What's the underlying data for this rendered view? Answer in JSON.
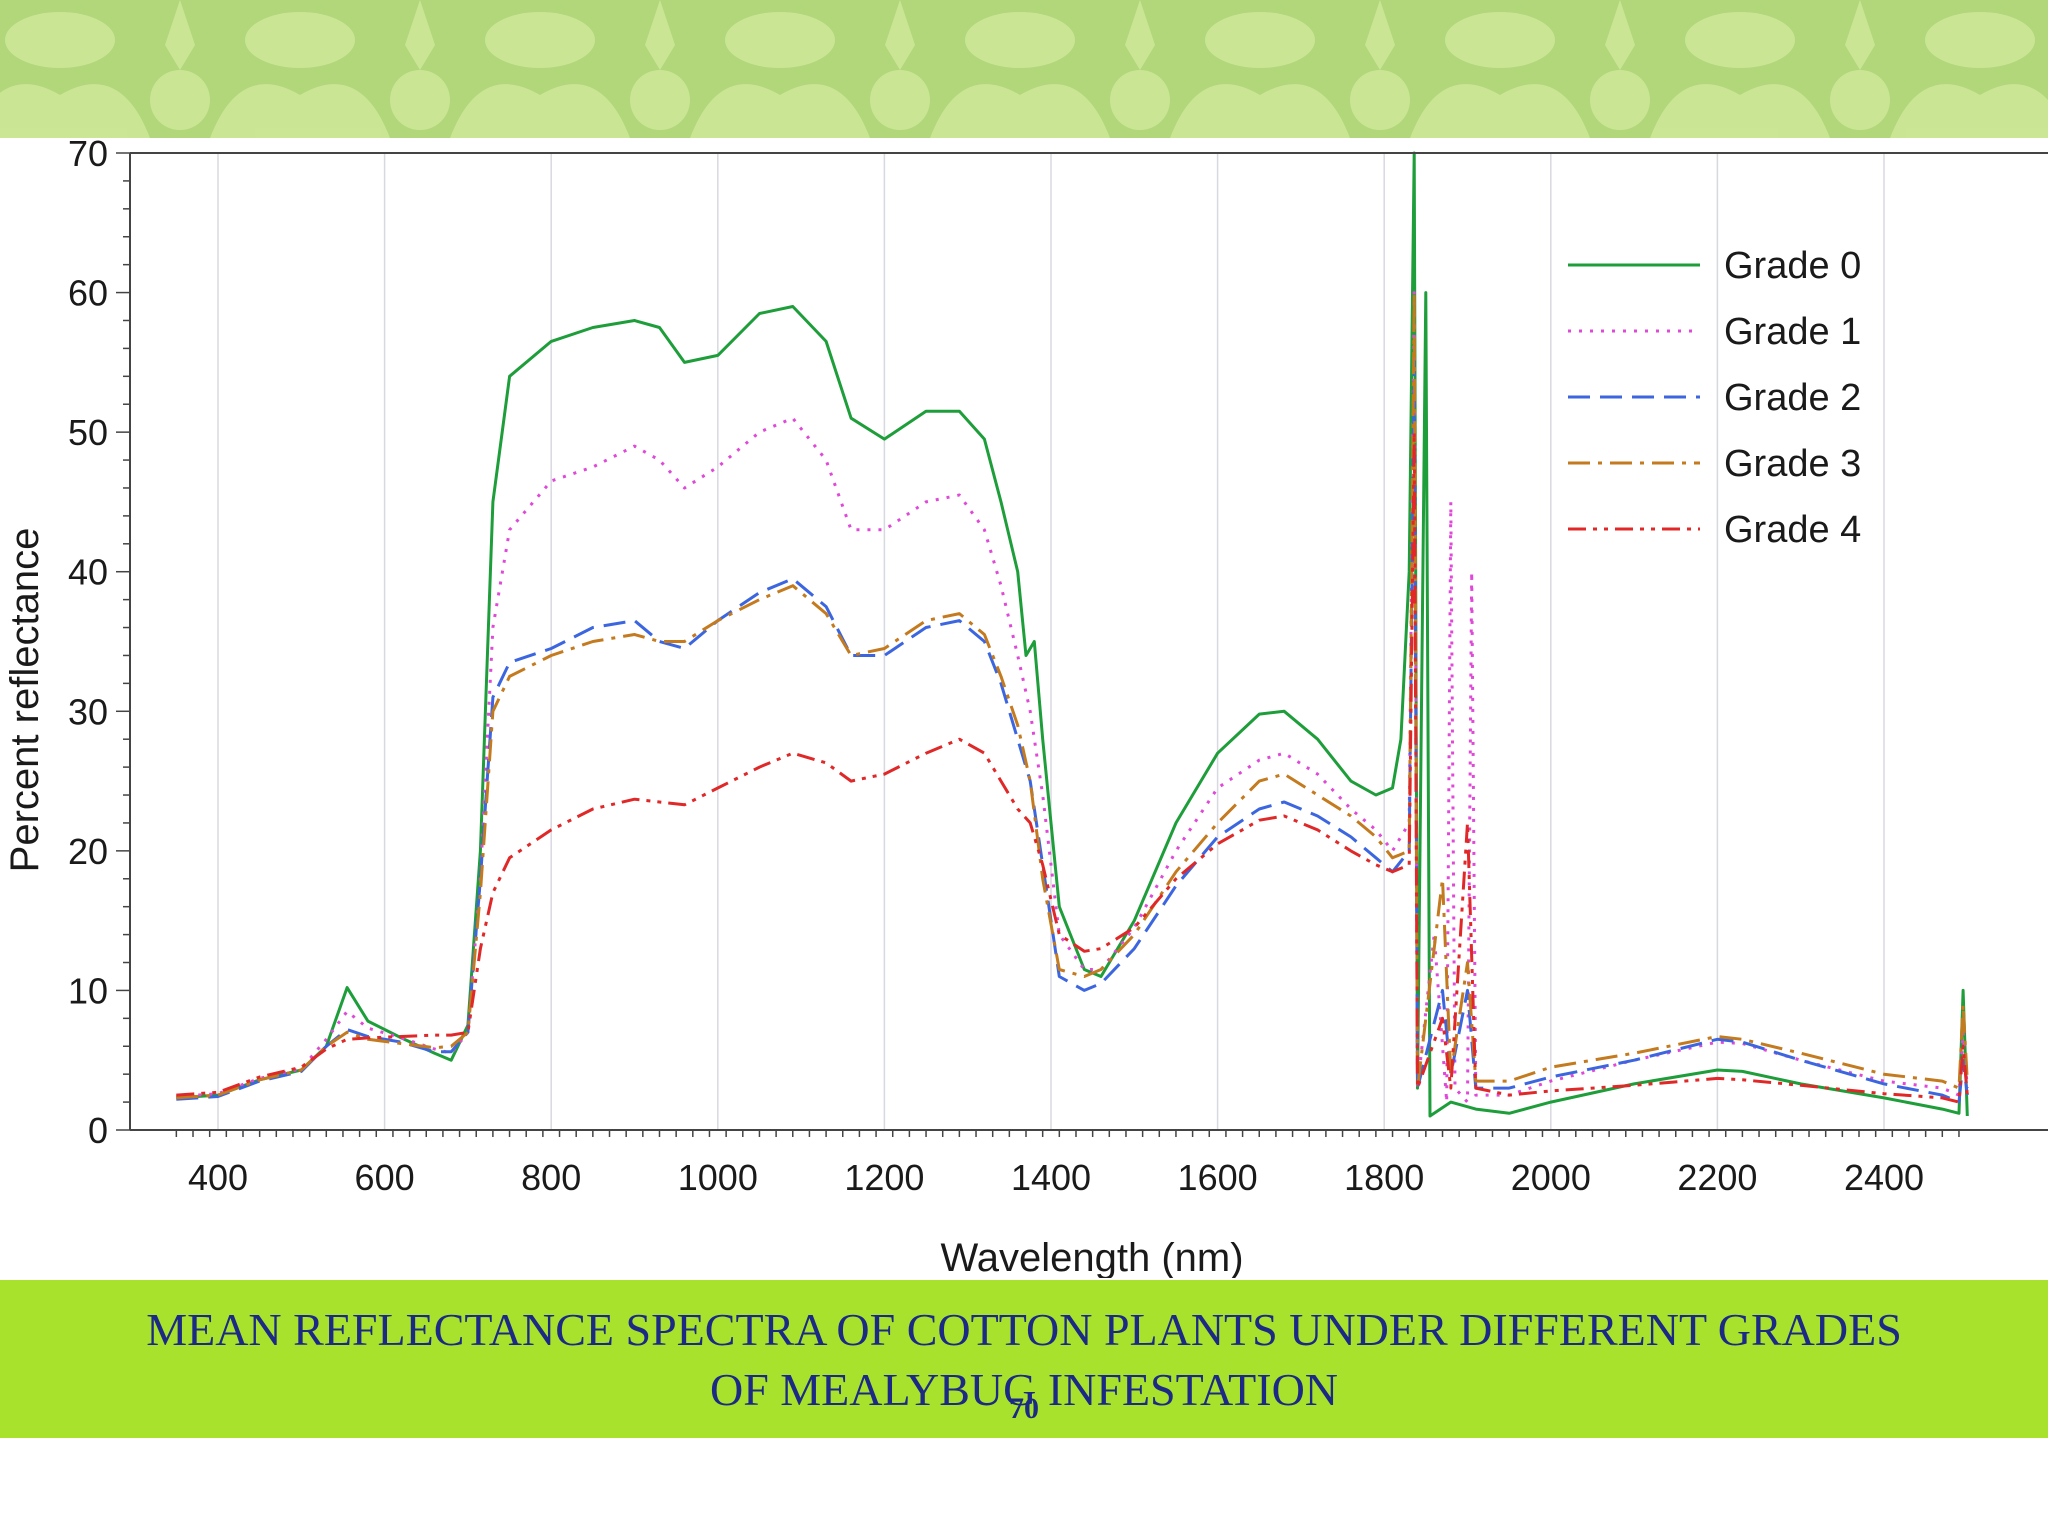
{
  "caption": {
    "line1": "MEAN REFLECTANCE SPECTRA OF COTTON PLANTS UNDER DIFFERENT GRADES",
    "line2": "OF MEALYBUG INFESTATION"
  },
  "page_number": "70",
  "colors": {
    "banner": "#b2d67a",
    "banner_pattern": "#cde898",
    "caption_bar": "#a8e22c",
    "caption_text": "#1c2a86"
  },
  "chart_data": {
    "type": "line",
    "title": "",
    "xlabel": "Wavelength (nm)",
    "ylabel": "Percent reflectance",
    "xlim": [
      350,
      2500
    ],
    "ylim": [
      0,
      70
    ],
    "x_ticks": [
      400,
      600,
      800,
      1000,
      1200,
      1400,
      1600,
      1800,
      2000,
      2200,
      2400
    ],
    "y_ticks": [
      0,
      10,
      20,
      30,
      40,
      50,
      60,
      70
    ],
    "grid": "vertical",
    "legend_position": "top-right",
    "series": [
      {
        "name": "Grade 0",
        "color": "#1e9e3a",
        "dash": "solid",
        "points": [
          [
            350,
            2.3
          ],
          [
            400,
            2.5
          ],
          [
            450,
            3.6
          ],
          [
            500,
            4.3
          ],
          [
            530,
            6
          ],
          [
            555,
            10.2
          ],
          [
            580,
            7.8
          ],
          [
            620,
            6.6
          ],
          [
            660,
            5.5
          ],
          [
            680,
            5
          ],
          [
            700,
            7.5
          ],
          [
            715,
            20
          ],
          [
            730,
            45
          ],
          [
            750,
            54
          ],
          [
            800,
            56.5
          ],
          [
            850,
            57.5
          ],
          [
            900,
            58
          ],
          [
            930,
            57.5
          ],
          [
            960,
            55
          ],
          [
            1000,
            55.5
          ],
          [
            1050,
            58.5
          ],
          [
            1090,
            59
          ],
          [
            1130,
            56.5
          ],
          [
            1160,
            51
          ],
          [
            1200,
            49.5
          ],
          [
            1250,
            51.5
          ],
          [
            1290,
            51.5
          ],
          [
            1320,
            49.5
          ],
          [
            1340,
            45
          ],
          [
            1360,
            40
          ],
          [
            1370,
            34
          ],
          [
            1380,
            35
          ],
          [
            1390,
            28
          ],
          [
            1410,
            16
          ],
          [
            1440,
            11.5
          ],
          [
            1460,
            11
          ],
          [
            1500,
            15
          ],
          [
            1550,
            22
          ],
          [
            1600,
            27
          ],
          [
            1650,
            29.8
          ],
          [
            1680,
            30
          ],
          [
            1720,
            28
          ],
          [
            1760,
            25
          ],
          [
            1790,
            24
          ],
          [
            1810,
            24.5
          ],
          [
            1820,
            28
          ],
          [
            1830,
            40
          ],
          [
            1836,
            70
          ],
          [
            1840,
            3
          ],
          [
            1850,
            60
          ],
          [
            1855,
            1
          ],
          [
            1880,
            2
          ],
          [
            1910,
            1.5
          ],
          [
            1950,
            1.2
          ],
          [
            2000,
            2
          ],
          [
            2100,
            3.3
          ],
          [
            2200,
            4.3
          ],
          [
            2230,
            4.2
          ],
          [
            2300,
            3.3
          ],
          [
            2400,
            2.3
          ],
          [
            2470,
            1.5
          ],
          [
            2490,
            1.2
          ],
          [
            2495,
            10
          ],
          [
            2500,
            1
          ]
        ]
      },
      {
        "name": "Grade 1",
        "color": "#e048d8",
        "dash": "dotted",
        "points": [
          [
            350,
            2.4
          ],
          [
            400,
            2.6
          ],
          [
            450,
            3.7
          ],
          [
            500,
            4.4
          ],
          [
            530,
            6.5
          ],
          [
            555,
            8.5
          ],
          [
            580,
            7.3
          ],
          [
            620,
            6.6
          ],
          [
            660,
            5.8
          ],
          [
            680,
            5.5
          ],
          [
            700,
            7
          ],
          [
            715,
            18
          ],
          [
            730,
            36
          ],
          [
            750,
            43
          ],
          [
            800,
            46.5
          ],
          [
            850,
            47.5
          ],
          [
            900,
            49
          ],
          [
            930,
            48
          ],
          [
            960,
            46
          ],
          [
            1000,
            47.5
          ],
          [
            1050,
            50
          ],
          [
            1090,
            51
          ],
          [
            1130,
            48
          ],
          [
            1160,
            43
          ],
          [
            1200,
            43
          ],
          [
            1250,
            45
          ],
          [
            1290,
            45.5
          ],
          [
            1320,
            43
          ],
          [
            1340,
            39
          ],
          [
            1360,
            34
          ],
          [
            1375,
            30
          ],
          [
            1390,
            24
          ],
          [
            1410,
            14
          ],
          [
            1440,
            11.5
          ],
          [
            1460,
            11.5
          ],
          [
            1500,
            14.5
          ],
          [
            1550,
            20
          ],
          [
            1600,
            24.5
          ],
          [
            1650,
            26.5
          ],
          [
            1680,
            27
          ],
          [
            1720,
            25.5
          ],
          [
            1760,
            23
          ],
          [
            1790,
            21.5
          ],
          [
            1810,
            20
          ],
          [
            1830,
            22
          ],
          [
            1836,
            60
          ],
          [
            1840,
            3
          ],
          [
            1860,
            14
          ],
          [
            1875,
            2
          ],
          [
            1880,
            45
          ],
          [
            1885,
            3
          ],
          [
            1900,
            2
          ],
          [
            1905,
            40
          ],
          [
            1910,
            2.5
          ],
          [
            1950,
            2.5
          ],
          [
            2000,
            3.5
          ],
          [
            2100,
            5
          ],
          [
            2200,
            6.3
          ],
          [
            2230,
            6.2
          ],
          [
            2300,
            5
          ],
          [
            2400,
            3.5
          ],
          [
            2470,
            3
          ],
          [
            2490,
            2.5
          ],
          [
            2495,
            7
          ],
          [
            2500,
            3
          ]
        ]
      },
      {
        "name": "Grade 2",
        "color": "#3c66e0",
        "dash": "dashed",
        "points": [
          [
            350,
            2.2
          ],
          [
            400,
            2.4
          ],
          [
            450,
            3.5
          ],
          [
            500,
            4.2
          ],
          [
            530,
            6
          ],
          [
            555,
            7.2
          ],
          [
            580,
            6.7
          ],
          [
            620,
            6.3
          ],
          [
            660,
            5.6
          ],
          [
            680,
            5.6
          ],
          [
            700,
            7
          ],
          [
            715,
            18
          ],
          [
            730,
            31
          ],
          [
            750,
            33.5
          ],
          [
            800,
            34.5
          ],
          [
            850,
            36
          ],
          [
            900,
            36.5
          ],
          [
            930,
            35
          ],
          [
            960,
            34.5
          ],
          [
            1000,
            36.5
          ],
          [
            1050,
            38.5
          ],
          [
            1090,
            39.5
          ],
          [
            1130,
            37.5
          ],
          [
            1160,
            34
          ],
          [
            1200,
            34
          ],
          [
            1250,
            36
          ],
          [
            1290,
            36.5
          ],
          [
            1320,
            35
          ],
          [
            1340,
            32
          ],
          [
            1360,
            28
          ],
          [
            1375,
            25
          ],
          [
            1390,
            19
          ],
          [
            1410,
            11
          ],
          [
            1440,
            10
          ],
          [
            1460,
            10.5
          ],
          [
            1500,
            13
          ],
          [
            1550,
            17.5
          ],
          [
            1600,
            21
          ],
          [
            1650,
            23
          ],
          [
            1680,
            23.5
          ],
          [
            1720,
            22.5
          ],
          [
            1760,
            21
          ],
          [
            1790,
            19.5
          ],
          [
            1810,
            18.5
          ],
          [
            1830,
            20
          ],
          [
            1836,
            55
          ],
          [
            1840,
            3
          ],
          [
            1870,
            10
          ],
          [
            1880,
            4
          ],
          [
            1900,
            10
          ],
          [
            1910,
            3
          ],
          [
            1950,
            3
          ],
          [
            2000,
            3.8
          ],
          [
            2100,
            5
          ],
          [
            2200,
            6.5
          ],
          [
            2230,
            6.3
          ],
          [
            2300,
            5
          ],
          [
            2400,
            3.3
          ],
          [
            2470,
            2.5
          ],
          [
            2490,
            2
          ],
          [
            2495,
            5
          ],
          [
            2500,
            2.5
          ]
        ]
      },
      {
        "name": "Grade 3",
        "color": "#c47a1e",
        "dash": "dashdot",
        "points": [
          [
            350,
            2.3
          ],
          [
            400,
            2.5
          ],
          [
            450,
            3.6
          ],
          [
            500,
            4.3
          ],
          [
            530,
            6
          ],
          [
            555,
            7
          ],
          [
            580,
            6.5
          ],
          [
            620,
            6.2
          ],
          [
            660,
            5.9
          ],
          [
            680,
            6
          ],
          [
            700,
            7
          ],
          [
            715,
            17
          ],
          [
            730,
            30
          ],
          [
            750,
            32.5
          ],
          [
            800,
            34
          ],
          [
            850,
            35
          ],
          [
            900,
            35.5
          ],
          [
            930,
            35
          ],
          [
            960,
            35
          ],
          [
            1000,
            36.5
          ],
          [
            1050,
            38
          ],
          [
            1090,
            39
          ],
          [
            1130,
            37
          ],
          [
            1160,
            34
          ],
          [
            1200,
            34.5
          ],
          [
            1250,
            36.5
          ],
          [
            1290,
            37
          ],
          [
            1320,
            35.5
          ],
          [
            1340,
            32.5
          ],
          [
            1360,
            29
          ],
          [
            1375,
            25
          ],
          [
            1390,
            18
          ],
          [
            1410,
            11.5
          ],
          [
            1440,
            11
          ],
          [
            1460,
            11.5
          ],
          [
            1500,
            14
          ],
          [
            1550,
            18.5
          ],
          [
            1600,
            22
          ],
          [
            1650,
            25
          ],
          [
            1680,
            25.5
          ],
          [
            1720,
            24
          ],
          [
            1760,
            22.5
          ],
          [
            1790,
            21
          ],
          [
            1810,
            19.5
          ],
          [
            1830,
            20
          ],
          [
            1836,
            60
          ],
          [
            1840,
            3
          ],
          [
            1870,
            18
          ],
          [
            1880,
            4
          ],
          [
            1900,
            12
          ],
          [
            1910,
            3.5
          ],
          [
            1950,
            3.5
          ],
          [
            2000,
            4.5
          ],
          [
            2100,
            5.5
          ],
          [
            2200,
            6.7
          ],
          [
            2230,
            6.5
          ],
          [
            2300,
            5.5
          ],
          [
            2400,
            4
          ],
          [
            2470,
            3.5
          ],
          [
            2490,
            3
          ],
          [
            2495,
            9
          ],
          [
            2500,
            3.5
          ]
        ]
      },
      {
        "name": "Grade 4",
        "color": "#e02828",
        "dash": "dashdotdot",
        "points": [
          [
            350,
            2.5
          ],
          [
            400,
            2.7
          ],
          [
            450,
            3.8
          ],
          [
            500,
            4.5
          ],
          [
            530,
            5.8
          ],
          [
            555,
            6.5
          ],
          [
            580,
            6.6
          ],
          [
            620,
            6.7
          ],
          [
            660,
            6.8
          ],
          [
            680,
            6.8
          ],
          [
            700,
            7
          ],
          [
            715,
            13
          ],
          [
            730,
            17
          ],
          [
            750,
            19.5
          ],
          [
            800,
            21.5
          ],
          [
            850,
            23
          ],
          [
            900,
            23.7
          ],
          [
            930,
            23.5
          ],
          [
            960,
            23.3
          ],
          [
            1000,
            24.5
          ],
          [
            1050,
            26
          ],
          [
            1090,
            27
          ],
          [
            1130,
            26.3
          ],
          [
            1160,
            25
          ],
          [
            1200,
            25.5
          ],
          [
            1250,
            27
          ],
          [
            1290,
            28
          ],
          [
            1320,
            27
          ],
          [
            1340,
            25
          ],
          [
            1360,
            23
          ],
          [
            1375,
            22
          ],
          [
            1390,
            19
          ],
          [
            1410,
            14
          ],
          [
            1440,
            12.8
          ],
          [
            1460,
            13
          ],
          [
            1500,
            14.5
          ],
          [
            1550,
            18
          ],
          [
            1600,
            20.5
          ],
          [
            1650,
            22.2
          ],
          [
            1680,
            22.5
          ],
          [
            1720,
            21.5
          ],
          [
            1760,
            20
          ],
          [
            1790,
            19
          ],
          [
            1810,
            18.5
          ],
          [
            1830,
            19
          ],
          [
            1836,
            50
          ],
          [
            1840,
            3
          ],
          [
            1870,
            8
          ],
          [
            1880,
            3
          ],
          [
            1900,
            22
          ],
          [
            1910,
            3
          ],
          [
            1950,
            2.5
          ],
          [
            2000,
            2.8
          ],
          [
            2100,
            3.2
          ],
          [
            2200,
            3.7
          ],
          [
            2230,
            3.6
          ],
          [
            2300,
            3.2
          ],
          [
            2400,
            2.6
          ],
          [
            2470,
            2.3
          ],
          [
            2490,
            2
          ],
          [
            2495,
            6
          ],
          [
            2500,
            2.5
          ]
        ]
      }
    ]
  }
}
